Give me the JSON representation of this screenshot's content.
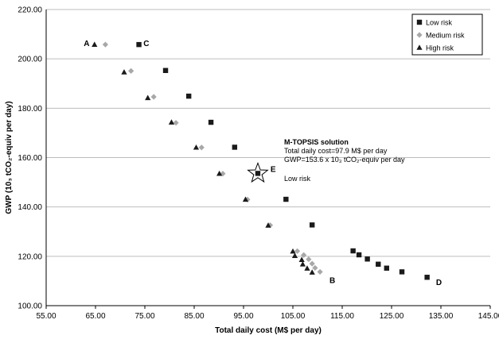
{
  "chart_data": {
    "type": "scatter",
    "xlabel": "Total daily cost (M$ per day)",
    "ylabel": "GWP (10₃ tCO₂-equiv per day)",
    "xlim": [
      55,
      145
    ],
    "ylim": [
      100,
      220
    ],
    "x_ticks": [
      "55.00",
      "65.00",
      "75.00",
      "85.00",
      "95.00",
      "105.00",
      "115.00",
      "125.00",
      "135.00",
      "145.00"
    ],
    "y_ticks": [
      "100.00",
      "120.00",
      "140.00",
      "160.00",
      "180.00",
      "200.00",
      "220.00"
    ],
    "grid": "horizontal",
    "legend_position": "top-right",
    "series": [
      {
        "name": "Low risk",
        "marker": "square",
        "color": "#1a1a1a",
        "points": [
          [
            73.8,
            205.8
          ],
          [
            79.2,
            195.3
          ],
          [
            83.9,
            184.9
          ],
          [
            88.4,
            174.3
          ],
          [
            93.2,
            164.2
          ],
          [
            103.6,
            143.1
          ],
          [
            108.9,
            132.7
          ],
          [
            117.2,
            122.2
          ],
          [
            118.4,
            120.6
          ],
          [
            120.1,
            118.9
          ],
          [
            122.3,
            116.8
          ],
          [
            124.0,
            115.2
          ],
          [
            127.1,
            113.7
          ],
          [
            132.2,
            111.5
          ]
        ]
      },
      {
        "name": "Medium risk",
        "marker": "diamond",
        "color": "#a8a8a8",
        "points": [
          [
            67.0,
            205.8
          ],
          [
            72.2,
            195.1
          ],
          [
            76.8,
            184.6
          ],
          [
            81.3,
            174.1
          ],
          [
            86.5,
            164.1
          ],
          [
            90.8,
            153.5
          ],
          [
            95.8,
            143.0
          ],
          [
            100.4,
            132.6
          ],
          [
            105.9,
            122.1
          ],
          [
            107.2,
            120.5
          ],
          [
            108.2,
            118.8
          ],
          [
            108.9,
            117.0
          ],
          [
            109.5,
            115.3
          ],
          [
            110.5,
            113.7
          ]
        ]
      },
      {
        "name": "High risk",
        "marker": "triangle",
        "color": "#1a1a1a",
        "points": [
          [
            64.8,
            205.8
          ],
          [
            70.8,
            194.6
          ],
          [
            75.6,
            184.2
          ],
          [
            80.4,
            174.3
          ],
          [
            85.4,
            164.1
          ],
          [
            90.1,
            153.5
          ],
          [
            95.4,
            143.0
          ],
          [
            100.0,
            132.5
          ],
          [
            105.0,
            122.0
          ],
          [
            105.4,
            120.2
          ],
          [
            106.8,
            118.6
          ],
          [
            107.0,
            116.8
          ],
          [
            107.9,
            115.1
          ],
          [
            108.9,
            113.5
          ]
        ]
      }
    ],
    "selected_solution": {
      "x": 97.9,
      "y": 153.6,
      "label": "E",
      "marker": "star"
    },
    "point_labels": [
      {
        "text": "A",
        "x": 63.2,
        "y": 206.3
      },
      {
        "text": "C",
        "x": 75.3,
        "y": 206.3
      },
      {
        "text": "E",
        "x": 101.0,
        "y": 155.3
      },
      {
        "text": "B",
        "x": 113.0,
        "y": 110.3
      },
      {
        "text": "D",
        "x": 134.6,
        "y": 109.5
      }
    ],
    "annotation": {
      "title": "M-TOPSIS solution",
      "lines": [
        "Total daily cost=97.9 M$ per day",
        "GWP=153.6 x 10₃ tCO₂-equiv  per day",
        "",
        "Low risk"
      ]
    }
  }
}
